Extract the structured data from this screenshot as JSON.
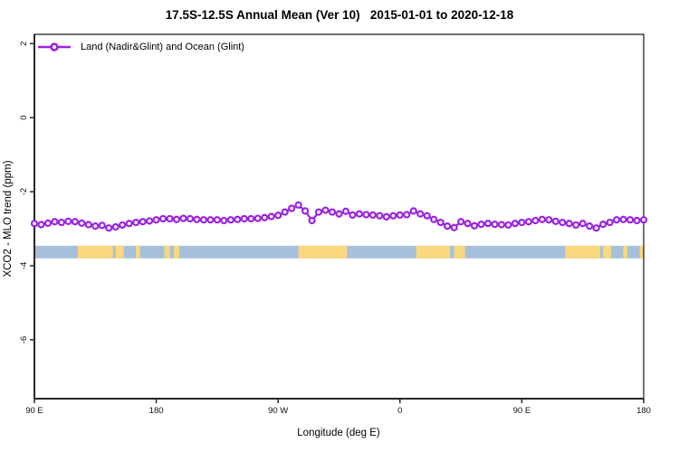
{
  "title": "17.5S-12.5S Annual Mean (Ver 10)   2015-01-01 to 2020-12-18",
  "legend": {
    "label": "Land (Nadir&Glint) and Ocean (Glint)"
  },
  "axes": {
    "y_label": "XCO2 - MLO trend (ppm)",
    "x_label": "Longitude (deg E)"
  },
  "colors": {
    "series": "#9B22E0",
    "ocean": "#A6BFDB",
    "land": "#FAD87D",
    "axis": "#262626"
  },
  "chart_data": {
    "type": "line",
    "title": "17.5S-12.5S Annual Mean (Ver 10)   2015-01-01 to 2020-12-18",
    "xlabel": "Longitude (deg E)",
    "ylabel": "XCO2 - MLO trend (ppm)",
    "xlim": [
      90,
      540
    ],
    "ylim": [
      -7.59,
      2.25
    ],
    "grid": false,
    "legend_position": "top-left",
    "x_tick_values": [
      90,
      180,
      270,
      360,
      450,
      540
    ],
    "x_tick_labels": [
      "90 E",
      "180",
      "90 W",
      "0",
      "90 E",
      "180"
    ],
    "y_tick_values": [
      2,
      0,
      -2,
      -4,
      -6
    ],
    "series": [
      {
        "name": "Land (Nadir&Glint) and Ocean (Glint)",
        "marker": "open-circle",
        "color": "#9B22E0",
        "x": [
          90,
          95,
          100,
          105,
          110,
          115,
          120,
          125,
          130,
          135,
          140,
          145,
          150,
          155,
          160,
          165,
          170,
          175,
          180,
          185,
          190,
          195,
          200,
          205,
          210,
          215,
          220,
          225,
          230,
          235,
          240,
          245,
          250,
          255,
          260,
          265,
          270,
          275,
          280,
          285,
          290,
          295,
          300,
          305,
          310,
          315,
          320,
          325,
          330,
          335,
          340,
          345,
          350,
          355,
          360,
          365,
          370,
          375,
          380,
          385,
          390,
          395,
          400,
          405,
          410,
          415,
          420,
          425,
          430,
          435,
          440,
          445,
          450,
          455,
          460,
          465,
          470,
          475,
          480,
          485,
          490,
          495,
          500,
          505,
          510,
          515,
          520,
          525,
          530,
          535,
          540
        ],
        "y": [
          -2.86,
          -2.89,
          -2.85,
          -2.81,
          -2.83,
          -2.8,
          -2.81,
          -2.85,
          -2.89,
          -2.93,
          -2.91,
          -2.98,
          -2.95,
          -2.9,
          -2.86,
          -2.83,
          -2.81,
          -2.79,
          -2.76,
          -2.73,
          -2.73,
          -2.75,
          -2.72,
          -2.73,
          -2.75,
          -2.76,
          -2.76,
          -2.76,
          -2.78,
          -2.76,
          -2.75,
          -2.73,
          -2.73,
          -2.72,
          -2.7,
          -2.67,
          -2.64,
          -2.55,
          -2.45,
          -2.36,
          -2.52,
          -2.78,
          -2.55,
          -2.5,
          -2.55,
          -2.6,
          -2.53,
          -2.63,
          -2.6,
          -2.62,
          -2.63,
          -2.65,
          -2.68,
          -2.65,
          -2.63,
          -2.62,
          -2.52,
          -2.6,
          -2.65,
          -2.75,
          -2.83,
          -2.93,
          -2.97,
          -2.81,
          -2.86,
          -2.92,
          -2.88,
          -2.86,
          -2.88,
          -2.89,
          -2.9,
          -2.86,
          -2.83,
          -2.81,
          -2.78,
          -2.75,
          -2.76,
          -2.8,
          -2.83,
          -2.86,
          -2.9,
          -2.86,
          -2.93,
          -2.98,
          -2.88,
          -2.83,
          -2.76,
          -2.75,
          -2.76,
          -2.78,
          -2.76
        ]
      }
    ],
    "map_strip": {
      "description": "land-ocean strip for latitude band",
      "top_value": -3.46,
      "bottom_value": -3.8,
      "land_segments_lon": [
        [
          122,
          148
        ],
        [
          150,
          156
        ],
        [
          165,
          168
        ],
        [
          186,
          190
        ],
        [
          193,
          197
        ],
        [
          285,
          321
        ],
        [
          372,
          397
        ],
        [
          400,
          408
        ],
        [
          482,
          508
        ],
        [
          510,
          516
        ],
        [
          525,
          528
        ],
        [
          537,
          540
        ]
      ]
    }
  }
}
